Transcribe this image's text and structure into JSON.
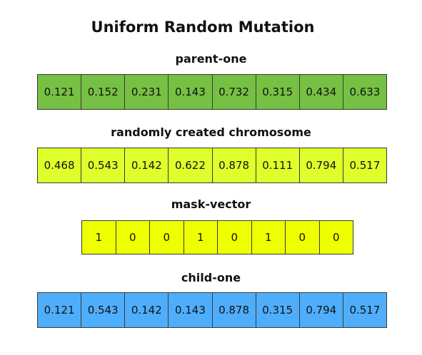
{
  "title": "Uniform Random Mutation",
  "parent": {
    "label": "parent-one",
    "color": "#76c043",
    "values": [
      "0.121",
      "0.152",
      "0.231",
      "0.143",
      "0.732",
      "0.315",
      "0.434",
      "0.633"
    ]
  },
  "random": {
    "label": "randomly created chromosome",
    "color": "#deff2a",
    "values": [
      "0.468",
      "0.543",
      "0.142",
      "0.622",
      "0.878",
      "0.111",
      "0.794",
      "0.517"
    ]
  },
  "mask": {
    "label": "mask-vector",
    "color": "#eeff00",
    "values": [
      "1",
      "0",
      "0",
      "1",
      "0",
      "1",
      "0",
      "0"
    ]
  },
  "child": {
    "label": "child-one",
    "color": "#4faefc",
    "values": [
      "0.121",
      "0.543",
      "0.142",
      "0.143",
      "0.878",
      "0.315",
      "0.794",
      "0.517"
    ]
  }
}
